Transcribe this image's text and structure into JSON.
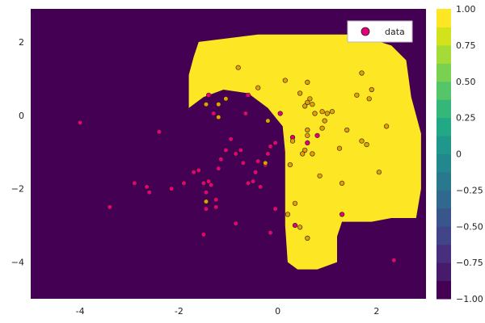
{
  "chart_data": {
    "type": "scatter",
    "title": "",
    "xlabel": "",
    "ylabel": "",
    "xlim": [
      -5,
      3
    ],
    "ylim": [
      -5,
      2.9
    ],
    "xticks": [
      -4,
      -2,
      0,
      2
    ],
    "yticks": [
      -4,
      -2,
      0,
      2
    ],
    "background_class_color": "#440154",
    "decision_region_color": "#fde725",
    "decision_region": [
      [
        -1.7,
        1.6
      ],
      [
        -1.6,
        2.0
      ],
      [
        -0.4,
        2.2
      ],
      [
        1.6,
        2.2
      ],
      [
        2.3,
        1.9
      ],
      [
        2.6,
        1.5
      ],
      [
        2.7,
        0.5
      ],
      [
        2.9,
        -0.5
      ],
      [
        2.9,
        -2.0
      ],
      [
        2.8,
        -2.8
      ],
      [
        2.3,
        -2.8
      ],
      [
        1.9,
        -2.9
      ],
      [
        1.3,
        -2.9
      ],
      [
        1.2,
        -3.3
      ],
      [
        1.2,
        -4.0
      ],
      [
        0.8,
        -4.2
      ],
      [
        0.4,
        -4.2
      ],
      [
        0.2,
        -4.0
      ],
      [
        0.15,
        -3.0
      ],
      [
        0.15,
        -1.0
      ],
      [
        0.1,
        -0.3
      ],
      [
        -0.2,
        0.2
      ],
      [
        -0.6,
        0.6
      ],
      [
        -1.1,
        0.7
      ],
      [
        -1.5,
        0.5
      ],
      [
        -1.8,
        0.2
      ],
      [
        -1.8,
        1.1
      ]
    ],
    "series": [
      {
        "name": "data",
        "color": "#e6007a",
        "points": [
          [
            -4.0,
            -0.2
          ],
          [
            -3.4,
            -2.5
          ],
          [
            -2.9,
            -1.85
          ],
          [
            -2.65,
            -1.95
          ],
          [
            -2.6,
            -2.1
          ],
          [
            -2.4,
            -0.45
          ],
          [
            -2.15,
            -2.0
          ],
          [
            -1.9,
            -1.85
          ],
          [
            -1.7,
            -1.55
          ],
          [
            -1.6,
            -1.5
          ],
          [
            -1.5,
            -1.85
          ],
          [
            -1.45,
            -2.1
          ],
          [
            -1.4,
            -1.8
          ],
          [
            -1.35,
            -1.9
          ],
          [
            -1.5,
            -3.25
          ],
          [
            -1.45,
            -2.55
          ],
          [
            -1.25,
            -2.3
          ],
          [
            -1.25,
            -2.5
          ],
          [
            -1.2,
            -1.45
          ],
          [
            -1.15,
            -1.2
          ],
          [
            -1.05,
            -0.95
          ],
          [
            -0.95,
            -0.65
          ],
          [
            -0.85,
            -1.05
          ],
          [
            -0.75,
            -0.95
          ],
          [
            -0.7,
            -1.3
          ],
          [
            -0.6,
            -1.85
          ],
          [
            -0.5,
            -1.8
          ],
          [
            -0.45,
            -1.55
          ],
          [
            -0.4,
            -1.25
          ],
          [
            -0.35,
            -1.95
          ],
          [
            -0.25,
            -1.35
          ],
          [
            -0.2,
            -1.05
          ],
          [
            -0.15,
            -0.85
          ],
          [
            -0.05,
            -0.75
          ],
          [
            -0.85,
            -2.95
          ],
          [
            -0.15,
            -3.2
          ],
          [
            -0.05,
            -2.55
          ],
          [
            -0.6,
            0.55
          ],
          [
            -0.65,
            0.05
          ],
          [
            0.05,
            0.05
          ],
          [
            0.3,
            -0.6
          ],
          [
            0.35,
            -3.0
          ],
          [
            0.6,
            -0.75
          ],
          [
            0.8,
            -0.55
          ],
          [
            1.3,
            -2.7
          ],
          [
            2.35,
            -3.95
          ],
          [
            -1.4,
            0.55
          ],
          [
            -1.3,
            0.05
          ]
        ]
      },
      {
        "name": "",
        "color": "#e69f00",
        "points": [
          [
            -0.8,
            1.3
          ],
          [
            -0.4,
            0.75
          ],
          [
            0.15,
            0.95
          ],
          [
            0.45,
            0.6
          ],
          [
            0.6,
            0.9
          ],
          [
            0.6,
            0.35
          ],
          [
            0.65,
            0.45
          ],
          [
            0.55,
            0.25
          ],
          [
            0.75,
            0.05
          ],
          [
            0.7,
            0.3
          ],
          [
            0.9,
            0.1
          ],
          [
            1.1,
            0.1
          ],
          [
            1.0,
            0.05
          ],
          [
            0.95,
            -0.15
          ],
          [
            0.9,
            -0.35
          ],
          [
            0.6,
            -0.4
          ],
          [
            0.6,
            -0.55
          ],
          [
            0.55,
            -0.95
          ],
          [
            0.5,
            -1.05
          ],
          [
            0.7,
            -1.05
          ],
          [
            0.3,
            -0.7
          ],
          [
            0.25,
            -1.35
          ],
          [
            0.85,
            -1.65
          ],
          [
            1.3,
            -1.85
          ],
          [
            1.4,
            -0.4
          ],
          [
            1.7,
            1.15
          ],
          [
            1.6,
            0.55
          ],
          [
            1.9,
            0.7
          ],
          [
            1.85,
            0.45
          ],
          [
            1.7,
            -0.7
          ],
          [
            1.8,
            -0.8
          ],
          [
            2.05,
            -1.55
          ],
          [
            2.2,
            -0.3
          ],
          [
            1.25,
            -0.9
          ],
          [
            -1.2,
            0.3
          ],
          [
            -1.2,
            -0.05
          ],
          [
            -0.2,
            -0.15
          ],
          [
            -0.25,
            -1.3
          ],
          [
            -1.45,
            0.3
          ],
          [
            -1.45,
            -2.35
          ],
          [
            0.2,
            -2.7
          ],
          [
            0.35,
            -2.4
          ],
          [
            0.45,
            -3.05
          ],
          [
            0.6,
            -3.35
          ],
          [
            -1.05,
            0.45
          ]
        ]
      }
    ],
    "legend": {
      "position": "top-right",
      "entries": [
        {
          "label": "data",
          "color": "#e6007a"
        }
      ]
    },
    "colorbar": {
      "min": -1.0,
      "max": 1.0,
      "levels": 16,
      "tick_labels": [
        "1.00",
        "0.75",
        "0.50",
        "0.25",
        "0",
        "-0.25",
        "-0.50",
        "-0.75",
        "-1.00"
      ],
      "tick_values": [
        1.0,
        0.75,
        0.5,
        0.25,
        0.0,
        -0.25,
        -0.5,
        -0.75,
        -1.0
      ]
    }
  }
}
